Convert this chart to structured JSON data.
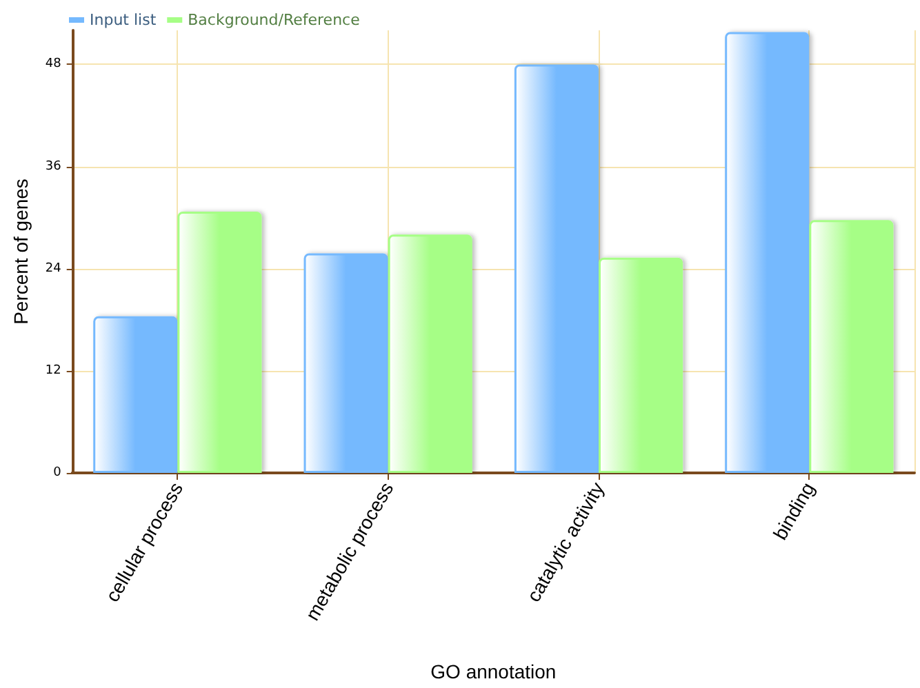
{
  "chart_data": {
    "type": "bar",
    "xlabel": "GO annotation",
    "ylabel": "Percent of genes",
    "categories": [
      "cellular process",
      "metabolic process",
      "catalytic activity",
      "binding"
    ],
    "series": [
      {
        "name": "Input list",
        "color": "#75b9fe",
        "values": [
          18.4,
          25.8,
          48.0,
          51.8
        ]
      },
      {
        "name": "Background/Reference",
        "color": "#a6fe86",
        "values": [
          30.7,
          28.0,
          25.3,
          29.7
        ]
      }
    ],
    "ylim": [
      0,
      52
    ],
    "yticks": [
      0,
      12,
      24,
      36,
      48
    ],
    "grid": true,
    "legend": "top left"
  }
}
